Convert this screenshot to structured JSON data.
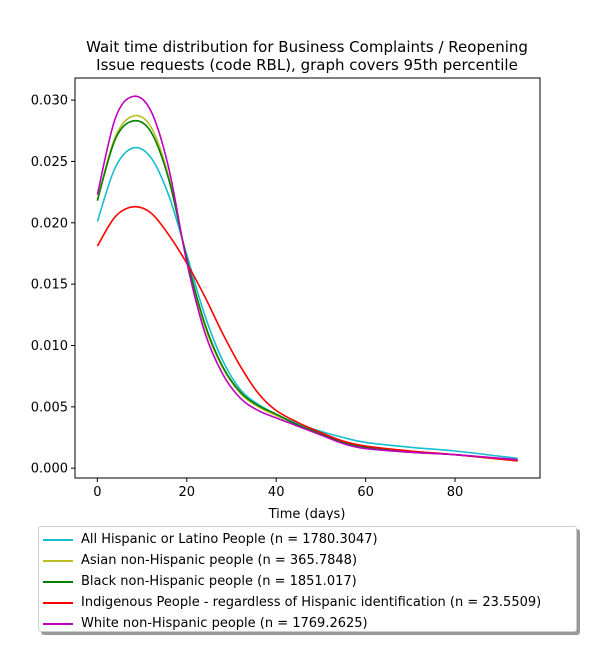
{
  "chart_data": {
    "type": "line",
    "title": [
      "Wait time distribution  for Business Complaints / Reopening",
      "Issue  requests (code RBL), graph covers 95th percentile"
    ],
    "xlabel": "Time (days)",
    "ylabel": "",
    "xlim": [
      -5,
      99
    ],
    "ylim": [
      -0.0008,
      0.0318
    ],
    "x_ticks": [
      0,
      20,
      40,
      60,
      80
    ],
    "x_tick_labels": [
      "0",
      "20",
      "40",
      "60",
      "80"
    ],
    "y_ticks": [
      0,
      0.005,
      0.01,
      0.015,
      0.02,
      0.025,
      0.03
    ],
    "y_tick_labels": [
      "0.000",
      "0.005",
      "0.010",
      "0.015",
      "0.020",
      "0.025",
      "0.030"
    ],
    "grid": false,
    "legend_position": "below",
    "x": [
      0,
      4,
      8,
      12,
      16,
      20,
      24,
      28,
      32,
      36,
      40,
      45,
      50,
      55,
      60,
      70,
      80,
      94
    ],
    "series": [
      {
        "name": "All Hispanic or Latino People (n = 1780.3047)",
        "color": "#17becf",
        "values": [
          0.0201,
          0.0245,
          0.0261,
          0.0253,
          0.0222,
          0.0174,
          0.0125,
          0.0088,
          0.0064,
          0.0052,
          0.0044,
          0.0036,
          0.003,
          0.0025,
          0.0021,
          0.0017,
          0.0014,
          0.0008
        ]
      },
      {
        "name": "Asian non-Hispanic people (n = 365.7848)",
        "color": "#bcbd22",
        "values": [
          0.0219,
          0.027,
          0.0287,
          0.0278,
          0.0237,
          0.017,
          0.0116,
          0.0082,
          0.0061,
          0.005,
          0.0043,
          0.0035,
          0.0028,
          0.0021,
          0.0017,
          0.0013,
          0.0011,
          0.0006
        ]
      },
      {
        "name": "Black non-Hispanic people (n = 1851.017)",
        "color": "#008000",
        "values": [
          0.0218,
          0.0268,
          0.0283,
          0.0274,
          0.0235,
          0.0171,
          0.0118,
          0.0083,
          0.0062,
          0.0051,
          0.0044,
          0.0035,
          0.0028,
          0.0021,
          0.0017,
          0.0013,
          0.0011,
          0.0006
        ]
      },
      {
        "name": "Indigenous People - regardless of Hispanic identification (n = 23.5509)",
        "color": "#ff0000",
        "values": [
          0.0181,
          0.0205,
          0.0213,
          0.0208,
          0.019,
          0.0167,
          0.014,
          0.011,
          0.0083,
          0.0061,
          0.0047,
          0.0037,
          0.0029,
          0.0022,
          0.0018,
          0.0014,
          0.0011,
          0.0006
        ]
      },
      {
        "name": "White non-Hispanic people (n = 1769.2625)",
        "color": "#bf00bf",
        "values": [
          0.0223,
          0.0285,
          0.0303,
          0.0291,
          0.0244,
          0.0168,
          0.0111,
          0.0077,
          0.0057,
          0.0047,
          0.0041,
          0.0034,
          0.0027,
          0.002,
          0.0016,
          0.0013,
          0.0011,
          0.0007
        ]
      }
    ]
  }
}
